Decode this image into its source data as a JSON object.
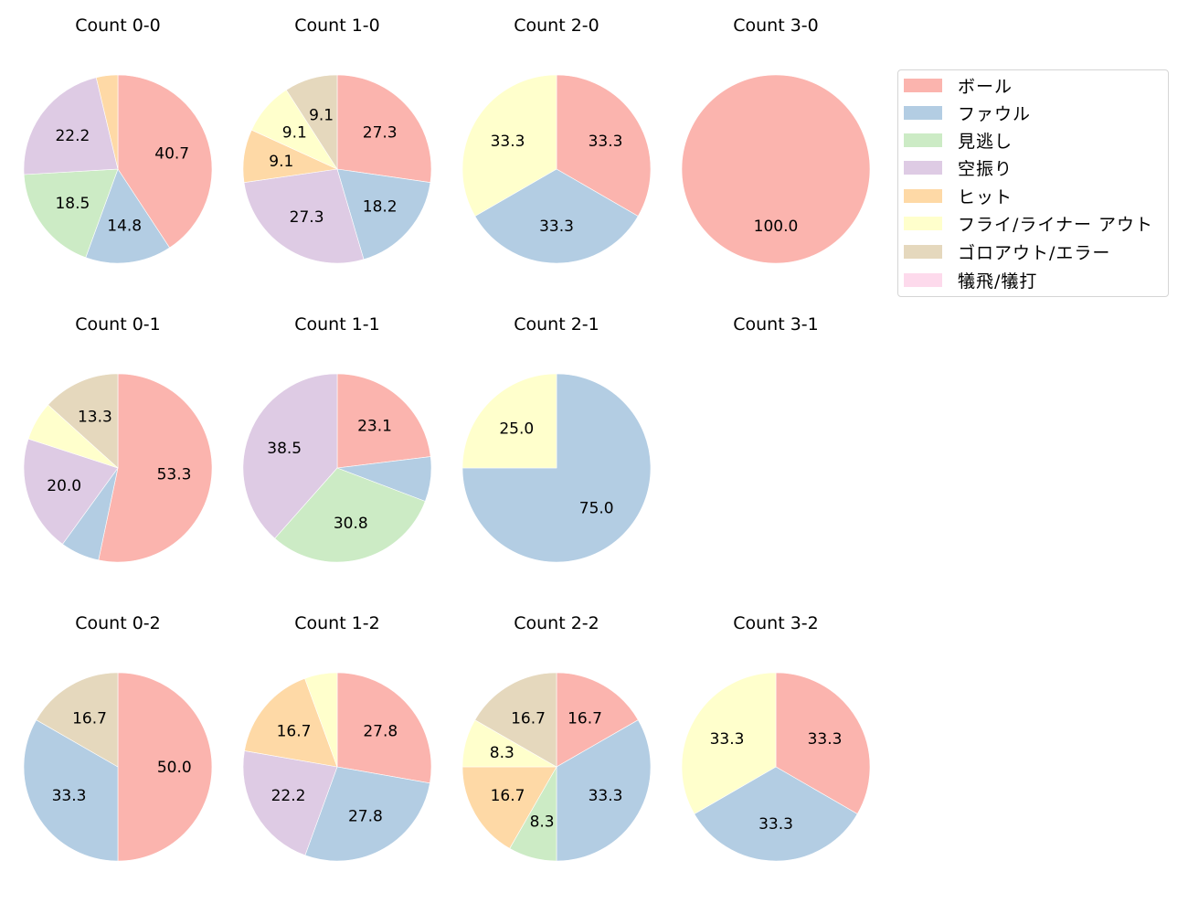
{
  "chart_data": {
    "type": "pie",
    "title": "",
    "layout": {
      "rows": 3,
      "cols": 4,
      "start_angle": 90,
      "direction": "clockwise",
      "pct_format": "%.1f",
      "label_threshold_note": "slices below ~8% unlabeled"
    },
    "legend": {
      "position": "upper right",
      "entries": [
        {
          "label": "ボール",
          "color": "#fbb4ae"
        },
        {
          "label": "ファウル",
          "color": "#b3cde3"
        },
        {
          "label": "見逃し",
          "color": "#ccebc5"
        },
        {
          "label": "空振り",
          "color": "#decbe4"
        },
        {
          "label": "ヒット",
          "color": "#fed9a6"
        },
        {
          "label": "フライ/ライナー アウト",
          "color": "#ffffcc"
        },
        {
          "label": "ゴロアウト/エラー",
          "color": "#e5d8bd"
        },
        {
          "label": "犠飛/犠打",
          "color": "#fddaec"
        }
      ]
    },
    "categories": [
      "ボール",
      "ファウル",
      "見逃し",
      "空振り",
      "ヒット",
      "フライ/ライナー アウト",
      "ゴロアウト/エラー",
      "犠飛/犠打"
    ],
    "pies": [
      {
        "title": "Count 0-0",
        "row": 0,
        "col": 0,
        "values": [
          40.7,
          14.8,
          18.5,
          22.2,
          3.7,
          0,
          0,
          0
        ],
        "labels": [
          "40.7",
          "14.8",
          "18.5",
          "22.2",
          "",
          "",
          "",
          ""
        ]
      },
      {
        "title": "Count 1-0",
        "row": 0,
        "col": 1,
        "values": [
          27.3,
          18.2,
          0,
          27.3,
          9.1,
          9.1,
          9.1,
          0
        ],
        "labels": [
          "27.3",
          "18.2",
          "",
          "27.3",
          "9.1",
          "9.1",
          "9.1",
          ""
        ]
      },
      {
        "title": "Count 2-0",
        "row": 0,
        "col": 2,
        "values": [
          33.3,
          33.3,
          0,
          0,
          0,
          33.3,
          0,
          0
        ],
        "labels": [
          "33.3",
          "33.3",
          "",
          "",
          "",
          "33.3",
          "",
          ""
        ]
      },
      {
        "title": "Count 3-0",
        "row": 0,
        "col": 3,
        "values": [
          100.0,
          0,
          0,
          0,
          0,
          0,
          0,
          0
        ],
        "labels": [
          "100.0",
          "",
          "",
          "",
          "",
          "",
          "",
          ""
        ]
      },
      {
        "title": "Count 0-1",
        "row": 1,
        "col": 0,
        "values": [
          53.3,
          6.7,
          0,
          20.0,
          0,
          6.7,
          13.3,
          0
        ],
        "labels": [
          "53.3",
          "",
          "",
          "20.0",
          "",
          "",
          "13.3",
          ""
        ]
      },
      {
        "title": "Count 1-1",
        "row": 1,
        "col": 1,
        "values": [
          23.1,
          7.7,
          30.8,
          38.5,
          0,
          0,
          0,
          0
        ],
        "labels": [
          "23.1",
          "",
          "30.8",
          "38.5",
          "",
          "",
          "",
          ""
        ]
      },
      {
        "title": "Count 2-1",
        "row": 1,
        "col": 2,
        "values": [
          0,
          75.0,
          0,
          0,
          0,
          25.0,
          0,
          0
        ],
        "labels": [
          "",
          "75.0",
          "",
          "",
          "",
          "25.0",
          "",
          ""
        ]
      },
      {
        "title": "Count 3-1",
        "row": 1,
        "col": 3,
        "values": [],
        "labels": []
      },
      {
        "title": "Count 0-2",
        "row": 2,
        "col": 0,
        "values": [
          50.0,
          33.3,
          0,
          0,
          0,
          0,
          16.7,
          0
        ],
        "labels": [
          "50.0",
          "33.3",
          "",
          "",
          "",
          "",
          "16.7",
          ""
        ]
      },
      {
        "title": "Count 1-2",
        "row": 2,
        "col": 1,
        "values": [
          27.8,
          27.8,
          0,
          22.2,
          16.7,
          5.6,
          0,
          0
        ],
        "labels": [
          "27.8",
          "27.8",
          "",
          "22.2",
          "16.7",
          "",
          "",
          ""
        ]
      },
      {
        "title": "Count 2-2",
        "row": 2,
        "col": 2,
        "values": [
          16.7,
          33.3,
          8.3,
          0,
          16.7,
          8.3,
          16.7,
          0
        ],
        "labels": [
          "16.7",
          "33.3",
          "8.3",
          "",
          "16.7",
          "8.3",
          "16.7",
          ""
        ]
      },
      {
        "title": "Count 3-2",
        "row": 2,
        "col": 3,
        "values": [
          33.3,
          33.3,
          0,
          0,
          0,
          33.3,
          0,
          0
        ],
        "labels": [
          "33.3",
          "33.3",
          "",
          "",
          "",
          "33.3",
          "",
          ""
        ]
      }
    ]
  }
}
